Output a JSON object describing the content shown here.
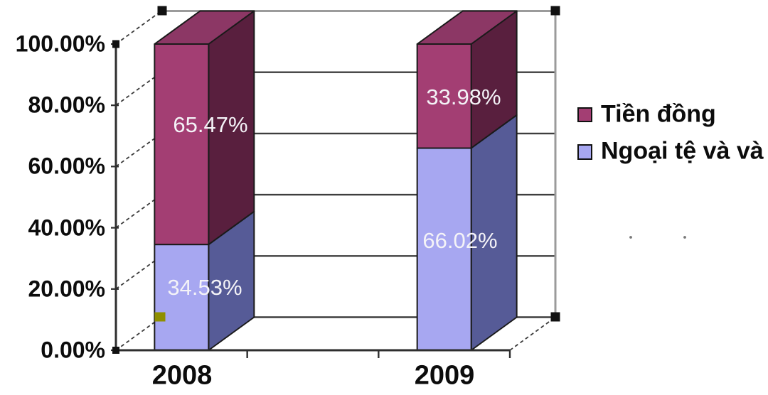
{
  "chart_data": {
    "type": "bar",
    "subtype": "stacked-100-3d",
    "categories": [
      "2008",
      "2009"
    ],
    "series": [
      {
        "name": "Tiền đồng",
        "color": "#A33E73",
        "color_side": "#591F3E",
        "color_top": "#8C3765",
        "values": [
          65.47,
          33.98
        ],
        "data_labels": [
          "65.47%",
          "33.98%"
        ]
      },
      {
        "name": "Ngoại tệ và và",
        "color": "#A7A7F1",
        "color_side": "#565B97",
        "color_top": "#8A8ACF",
        "values": [
          34.53,
          66.02
        ],
        "data_labels": [
          "34.53%",
          "66.02%"
        ]
      }
    ],
    "stack_order_bottom_to_top": [
      1,
      0
    ],
    "y_ticks": [
      "0.00%",
      "20.00%",
      "40.00%",
      "60.00%",
      "80.00%",
      "100.00%"
    ],
    "ylim": [
      0,
      100
    ],
    "grid": true,
    "legend_position": "right",
    "title": ""
  },
  "legend": {
    "items": [
      {
        "label": "Tiền đồng",
        "color": "#A33E73"
      },
      {
        "label": "Ngoại tệ và và",
        "color": "#A7A7F1"
      }
    ]
  },
  "selection": {
    "handle_color": "#111111",
    "floor_handle_color": "#8F8F00"
  }
}
